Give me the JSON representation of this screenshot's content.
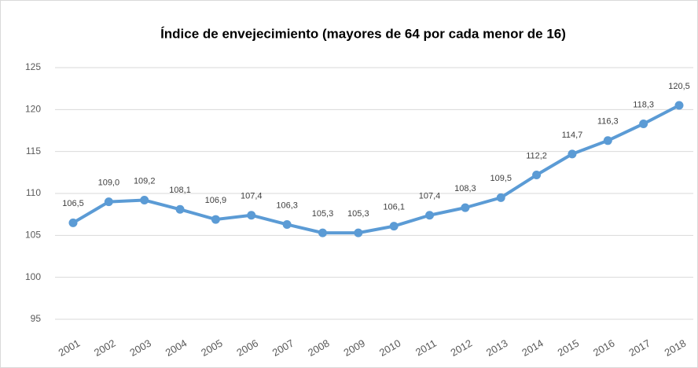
{
  "chart_data": {
    "type": "line",
    "title": "Índice de envejecimiento (mayores de 64 por cada menor de 16)",
    "categories": [
      "2001",
      "2002",
      "2003",
      "2004",
      "2005",
      "2006",
      "2007",
      "2008",
      "2009",
      "2010",
      "2011",
      "2012",
      "2013",
      "2014",
      "2015",
      "2016",
      "2017",
      "2018"
    ],
    "series": [
      {
        "name": "Índice de envejecimiento",
        "color": "#5b9bd5",
        "values": [
          106.5,
          109.0,
          109.2,
          108.1,
          106.9,
          107.4,
          106.3,
          105.3,
          105.3,
          106.1,
          107.4,
          108.3,
          109.5,
          112.2,
          114.7,
          116.3,
          118.3,
          120.5
        ],
        "value_labels": [
          "106,5",
          "109,0",
          "109,2",
          "108,1",
          "106,9",
          "107,4",
          "106,3",
          "105,3",
          "105,3",
          "106,1",
          "107,4",
          "108,3",
          "109,5",
          "112,2",
          "114,7",
          "116,3",
          "118,3",
          "120,5"
        ]
      }
    ],
    "ylim": [
      95,
      125
    ],
    "yticks": [
      95,
      100,
      105,
      110,
      115,
      120,
      125
    ],
    "grid": true
  }
}
